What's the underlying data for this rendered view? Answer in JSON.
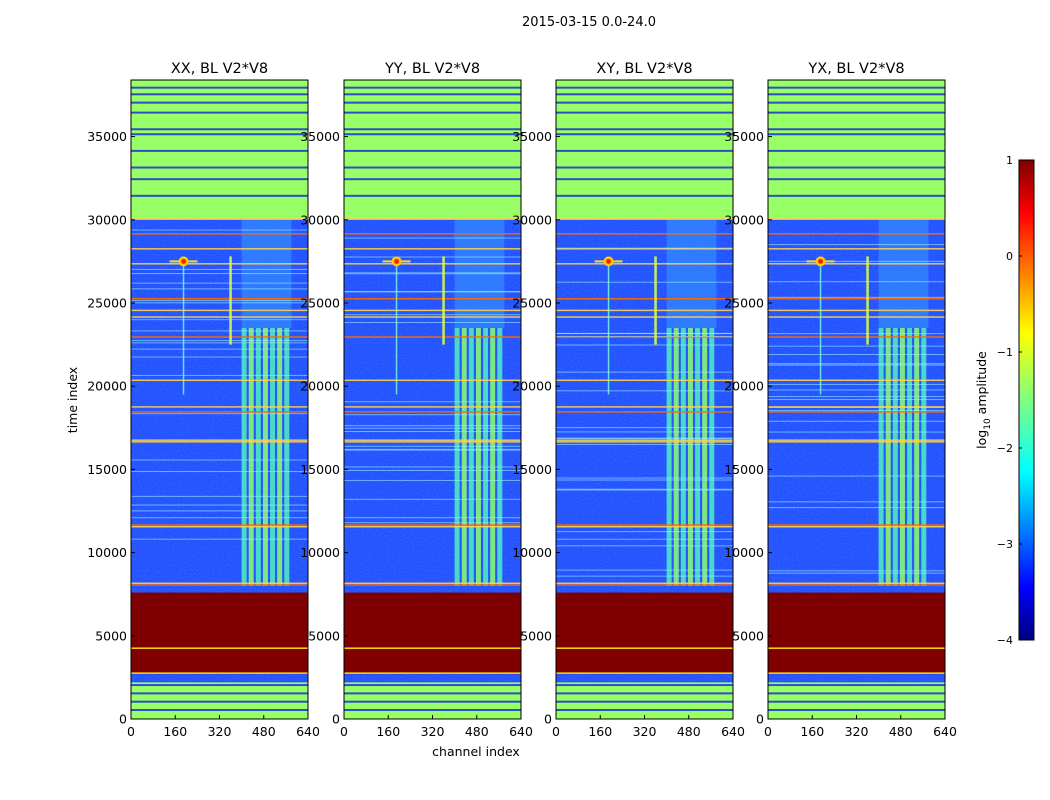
{
  "chart_data": {
    "type": "heatmap",
    "suptitle": "2015-03-15 0.0-24.0",
    "xlabel": "channel index",
    "ylabel": "time index",
    "xlim": [
      0,
      640
    ],
    "ylim": [
      0,
      38400
    ],
    "x_ticks": [
      "0",
      "160",
      "320",
      "480",
      "640"
    ],
    "y_ticks": [
      "0",
      "5000",
      "10000",
      "15000",
      "20000",
      "25000",
      "30000",
      "35000"
    ],
    "panels": [
      {
        "title": "XX, BL V2*V8",
        "flare_channel": 190,
        "spur_channel": 360
      },
      {
        "title": "YY, BL V2*V8",
        "flare_channel": 190,
        "spur_channel": 360
      },
      {
        "title": "XY, BL V2*V8",
        "flare_channel": 190,
        "spur_channel": 360
      },
      {
        "title": "YX, BL V2*V8",
        "flare_channel": 190,
        "spur_channel": 360
      }
    ],
    "colorbar": {
      "label": "log₁₀ amplitude",
      "label_prefix": "log",
      "label_sub": "10",
      "label_suffix": " amplitude",
      "vmin": -4,
      "vmax": 1,
      "tick_values": [
        1,
        0,
        -1,
        -2,
        -3,
        -4
      ],
      "tick_labels": [
        "1",
        "0",
        "−1",
        "−2",
        "−3",
        "−4"
      ],
      "colormap": "jet"
    },
    "features": {
      "saturated_block_time": [
        2700,
        7600
      ],
      "flagged_green_times": [
        [
          0,
          2200
        ],
        [
          30000,
          38400
        ]
      ],
      "rfi_band_channels": [
        400,
        580
      ],
      "flare_time": 27500
    }
  },
  "colors": {
    "saturated": "#7f0000",
    "flagged": "#99ff66",
    "background_low": "#1f3fff",
    "background_mid": "#2a6cff",
    "rfi": "#4ff0c0",
    "hot_line": "#ff6a00"
  }
}
